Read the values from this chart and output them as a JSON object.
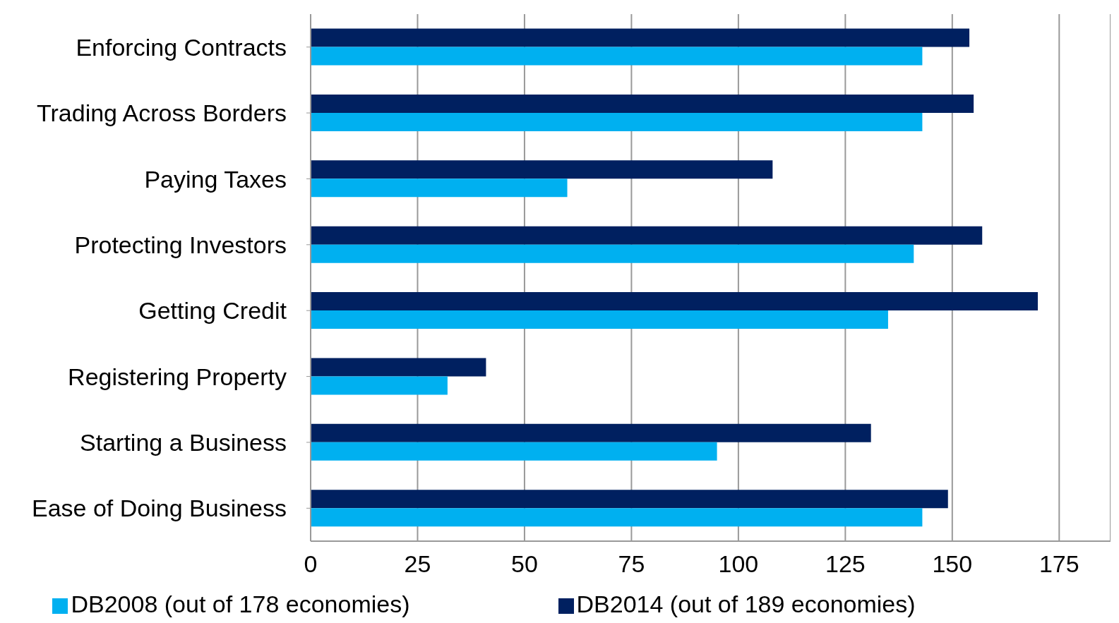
{
  "chart_data": {
    "type": "bar",
    "orientation": "horizontal",
    "categories": [
      "Enforcing Contracts",
      "Trading Across Borders",
      "Paying Taxes",
      "Protecting Investors",
      "Getting Credit",
      "Registering Property",
      "Starting a Business",
      "Ease of Doing Business"
    ],
    "series": [
      {
        "name": "DB2014 (out of 189 economies)",
        "color": "#002060",
        "values": [
          154,
          155,
          108,
          157,
          170,
          41,
          131,
          149
        ]
      },
      {
        "name": "DB2008 (out of 178 economies)",
        "color": "#00b0f0",
        "values": [
          143,
          143,
          60,
          141,
          135,
          32,
          95,
          143
        ]
      }
    ],
    "xlim": [
      0,
      187
    ],
    "xticks": [
      0,
      25,
      50,
      75,
      100,
      125,
      150,
      175
    ],
    "grid": "x",
    "legend": "bottom"
  }
}
